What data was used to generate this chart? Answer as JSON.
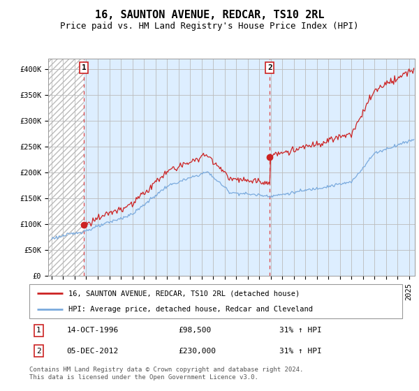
{
  "title": "16, SAUNTON AVENUE, REDCAR, TS10 2RL",
  "subtitle": "Price paid vs. HM Land Registry's House Price Index (HPI)",
  "ylim": [
    0,
    420000
  ],
  "yticks": [
    0,
    50000,
    100000,
    150000,
    200000,
    250000,
    300000,
    350000,
    400000
  ],
  "ytick_labels": [
    "£0",
    "£50K",
    "£100K",
    "£150K",
    "£200K",
    "£250K",
    "£300K",
    "£350K",
    "£400K"
  ],
  "xlim_start": 1993.7,
  "xlim_end": 2025.5,
  "sale1_date": 1996.79,
  "sale1_price": 98500,
  "sale1_label": "1",
  "sale2_date": 2012.92,
  "sale2_price": 230000,
  "sale2_label": "2",
  "hpi_line_color": "#7aaadd",
  "price_line_color": "#cc2222",
  "sale_dot_color": "#cc2222",
  "vline_color": "#dd4444",
  "bg_blue": "#ddeeff",
  "bg_hatch_color": "#e8e8e8",
  "legend_label1": "16, SAUNTON AVENUE, REDCAR, TS10 2RL (detached house)",
  "legend_label2": "HPI: Average price, detached house, Redcar and Cleveland",
  "annotation1_box": "1",
  "annotation1_date_str": "14-OCT-1996",
  "annotation1_price_str": "£98,500",
  "annotation1_hpi_str": "31% ↑ HPI",
  "annotation2_box": "2",
  "annotation2_date_str": "05-DEC-2012",
  "annotation2_price_str": "£230,000",
  "annotation2_hpi_str": "31% ↑ HPI",
  "footer": "Contains HM Land Registry data © Crown copyright and database right 2024.\nThis data is licensed under the Open Government Licence v3.0.",
  "title_fontsize": 11,
  "subtitle_fontsize": 9,
  "tick_fontsize": 7.5,
  "legend_fontsize": 7.5,
  "annotation_fontsize": 8,
  "footer_fontsize": 6.5
}
